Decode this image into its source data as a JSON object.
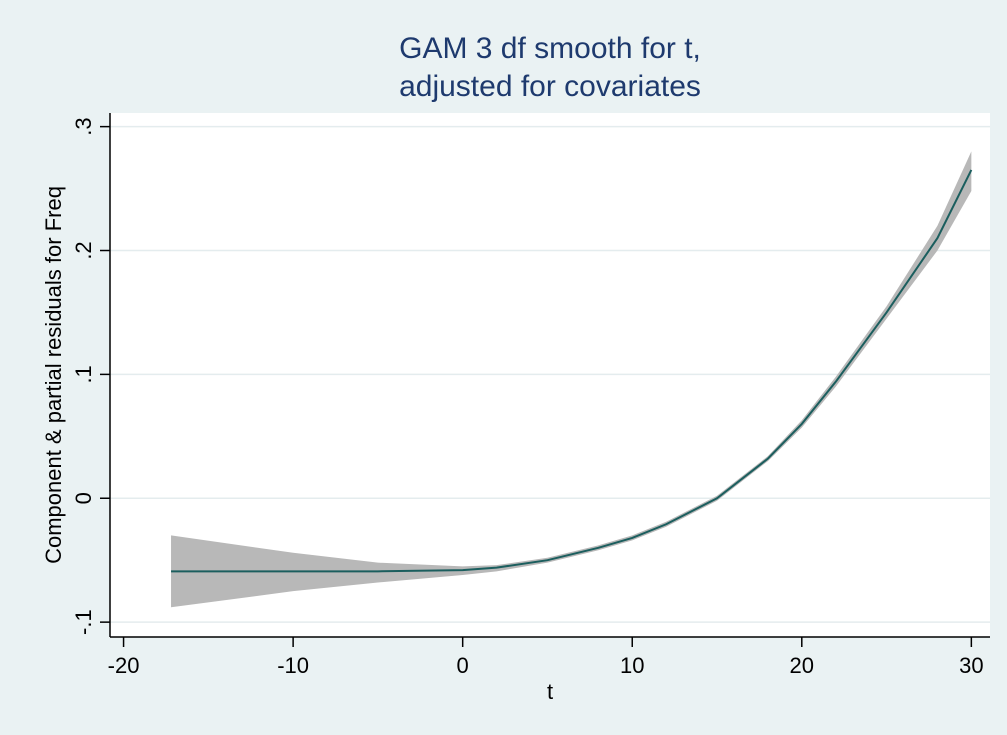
{
  "chart_data": {
    "type": "line",
    "title": [
      "GAM 3 df smooth for t,",
      "adjusted for covariates"
    ],
    "x_label": "t",
    "y_label": "Component & partial residuals for Freq",
    "x": [
      -17.2,
      -10,
      -5,
      0,
      2,
      5,
      8,
      10,
      12,
      15,
      18,
      20,
      22,
      25,
      28,
      30
    ],
    "values": [
      -0.059,
      -0.059,
      -0.059,
      -0.058,
      -0.056,
      -0.05,
      -0.04,
      -0.032,
      -0.021,
      0.0,
      0.032,
      0.06,
      0.094,
      0.15,
      0.21,
      0.265
    ],
    "lower": [
      -0.088,
      -0.075,
      -0.068,
      -0.062,
      -0.059,
      -0.052,
      -0.042,
      -0.034,
      -0.023,
      -0.002,
      0.03,
      0.057,
      0.09,
      0.145,
      0.2,
      0.248
    ],
    "upper": [
      -0.03,
      -0.044,
      -0.052,
      -0.055,
      -0.054,
      -0.048,
      -0.038,
      -0.03,
      -0.019,
      0.002,
      0.034,
      0.063,
      0.098,
      0.155,
      0.22,
      0.28
    ],
    "line_color": "#1b5e5e",
    "band_color": "#b8b8b8",
    "xlim": [
      -20.8,
      31.1
    ],
    "ylim": [
      -0.112,
      0.311
    ],
    "xticks": [
      -20,
      -10,
      0,
      10,
      20,
      30
    ],
    "yticks": [
      {
        "value": -0.1,
        "label": "-.1"
      },
      {
        "value": 0,
        "label": "0"
      },
      {
        "value": 0.1,
        "label": ".1"
      },
      {
        "value": 0.2,
        "label": ".2"
      },
      {
        "value": 0.3,
        "label": ".3"
      }
    ],
    "grid": true
  }
}
